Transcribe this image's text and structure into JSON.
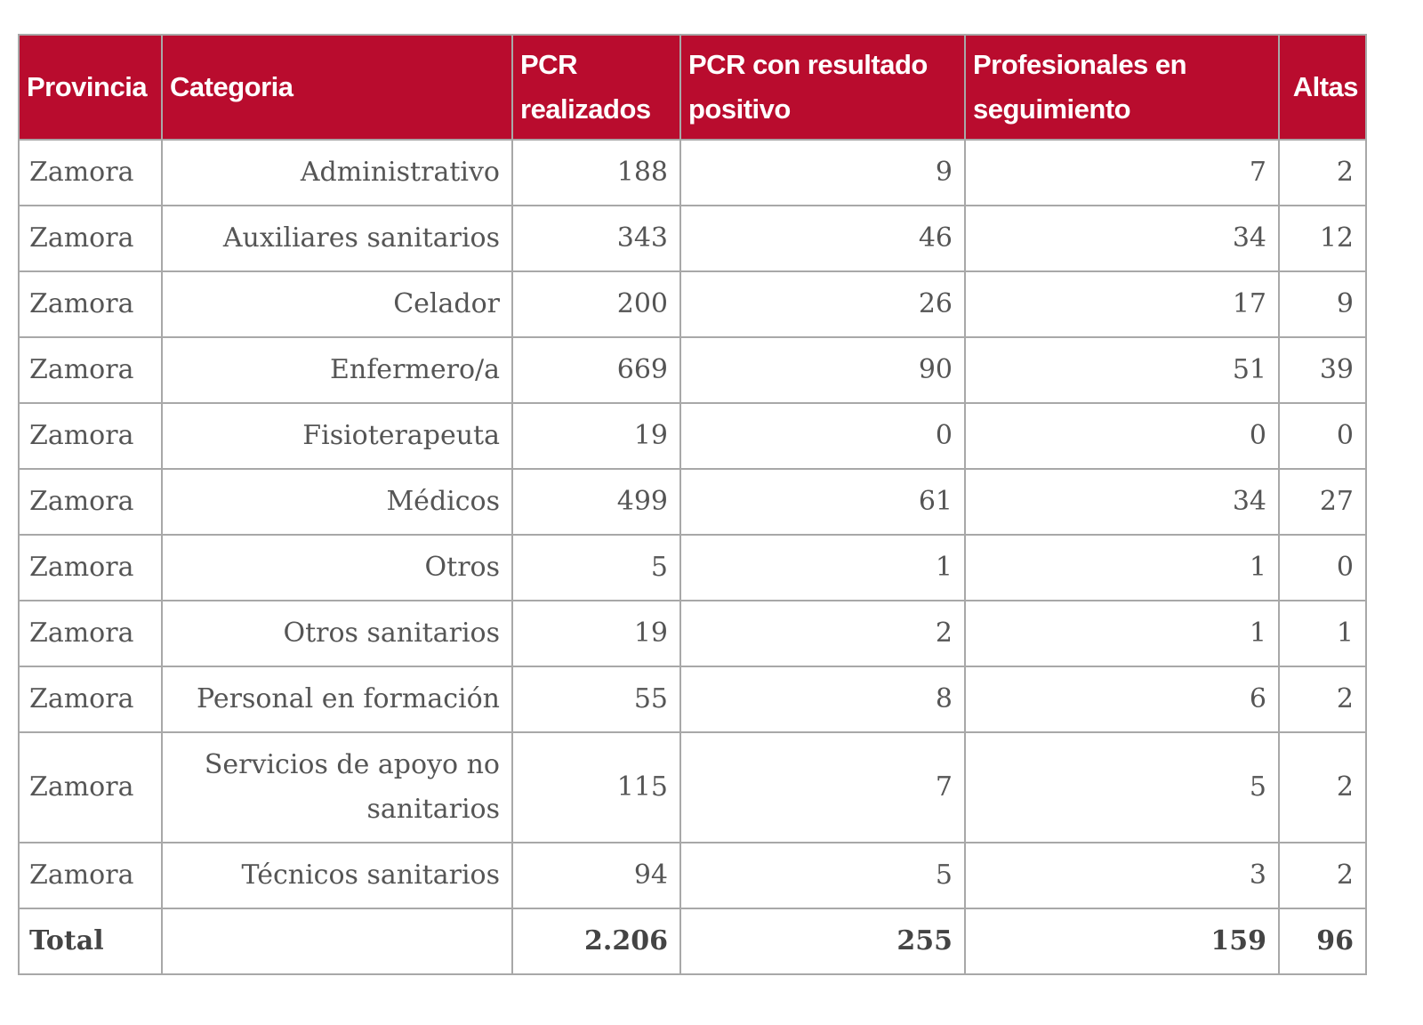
{
  "headers": {
    "provincia": "Provincia",
    "categoria": "Categoria",
    "pcr": "PCR realizados",
    "positivo": "PCR con resultado positivo",
    "seguimiento": "Profesionales en seguimiento",
    "altas": "Altas"
  },
  "rows": [
    {
      "provincia": "Zamora",
      "categoria": "Administrativo",
      "pcr": "188",
      "positivo": "9",
      "seguimiento": "7",
      "altas": "2"
    },
    {
      "provincia": "Zamora",
      "categoria": "Auxiliares sanitarios",
      "pcr": "343",
      "positivo": "46",
      "seguimiento": "34",
      "altas": "12"
    },
    {
      "provincia": "Zamora",
      "categoria": "Celador",
      "pcr": "200",
      "positivo": "26",
      "seguimiento": "17",
      "altas": "9"
    },
    {
      "provincia": "Zamora",
      "categoria": "Enfermero/a",
      "pcr": "669",
      "positivo": "90",
      "seguimiento": "51",
      "altas": "39"
    },
    {
      "provincia": "Zamora",
      "categoria": "Fisioterapeuta",
      "pcr": "19",
      "positivo": "0",
      "seguimiento": "0",
      "altas": "0"
    },
    {
      "provincia": "Zamora",
      "categoria": "Médicos",
      "pcr": "499",
      "positivo": "61",
      "seguimiento": "34",
      "altas": "27"
    },
    {
      "provincia": "Zamora",
      "categoria": "Otros",
      "pcr": "5",
      "positivo": "1",
      "seguimiento": "1",
      "altas": "0"
    },
    {
      "provincia": "Zamora",
      "categoria": "Otros sanitarios",
      "pcr": "19",
      "positivo": "2",
      "seguimiento": "1",
      "altas": "1"
    },
    {
      "provincia": "Zamora",
      "categoria": "Personal en formación",
      "pcr": "55",
      "positivo": "8",
      "seguimiento": "6",
      "altas": "2"
    },
    {
      "provincia": "Zamora",
      "categoria": "Servicios de apoyo no sanitarios",
      "pcr": "115",
      "positivo": "7",
      "seguimiento": "5",
      "altas": "2"
    },
    {
      "provincia": "Zamora",
      "categoria": "Técnicos sanitarios",
      "pcr": "94",
      "positivo": "5",
      "seguimiento": "3",
      "altas": "2"
    }
  ],
  "total": {
    "label": "Total",
    "categoria": "",
    "pcr": "2.206",
    "positivo": "255",
    "seguimiento": "159",
    "altas": "96"
  },
  "colors": {
    "header_bg": "#b90c2e",
    "header_text": "#ffffff",
    "border": "#a8a8a8",
    "body_text": "#555555"
  }
}
